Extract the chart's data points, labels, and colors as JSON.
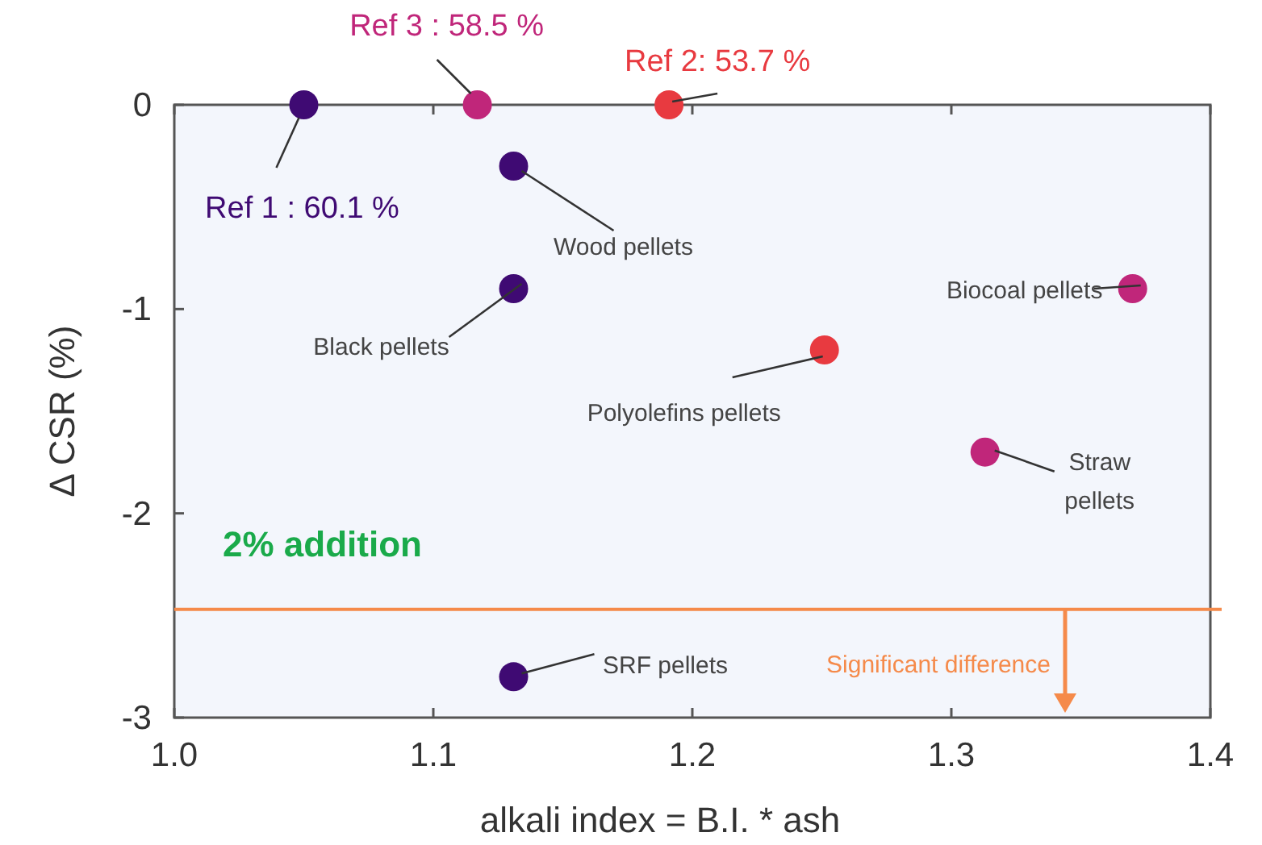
{
  "chart_data": {
    "type": "scatter",
    "xlabel": "alkali index = B.I. * ash",
    "ylabel": "Δ CSR (%)",
    "x": [
      1.05,
      1.117,
      1.191,
      1.131,
      1.131,
      1.251,
      1.37,
      1.313,
      1.131
    ],
    "values": [
      0,
      0,
      0,
      -0.3,
      -0.9,
      -1.2,
      -0.9,
      -1.7,
      -2.8
    ],
    "colors": [
      "#3f0a73",
      "#c0267a",
      "#e83a40",
      "#3f0a73",
      "#3f0a73",
      "#e83a40",
      "#c0267a",
      "#c0267a",
      "#3f0a73"
    ],
    "xlim": [
      1.0,
      1.4
    ],
    "ylim": [
      -3,
      0
    ],
    "xticks": [
      {
        "value": 1.0,
        "label": "1.0"
      },
      {
        "value": 1.1,
        "label": "1.1"
      },
      {
        "value": 1.2,
        "label": "1.2"
      },
      {
        "value": 1.3,
        "label": "1.3"
      },
      {
        "value": 1.4,
        "label": "1.4"
      }
    ],
    "yticks": [
      0,
      -1,
      -2,
      -3
    ],
    "marker": "circle",
    "grid": false,
    "ref_lines": [
      {
        "axis": "y",
        "value": -2.47,
        "label": "Significant difference",
        "color": "#f58a4a"
      }
    ],
    "annotations": [
      {
        "text": "Ref 1 : 60.1 %",
        "x": 1.05,
        "y": 0
      },
      {
        "text": "Ref 3 : 58.5 %",
        "x": 1.117,
        "y": 0
      },
      {
        "text": "Ref 2: 53.7 %",
        "x": 1.191,
        "y": 0
      },
      {
        "text": "Wood pellets",
        "x": 1.131,
        "y": -0.3
      },
      {
        "text": "Black pellets",
        "x": 1.131,
        "y": -0.9
      },
      {
        "text": "Polyolefins pellets",
        "x": 1.251,
        "y": -1.2
      },
      {
        "text": "Biocoal pellets",
        "x": 1.37,
        "y": -0.9
      },
      {
        "text": "Straw pellets",
        "x": 1.313,
        "y": -1.7
      },
      {
        "text": "SRF pellets",
        "x": 1.131,
        "y": -2.8
      },
      "2% addition"
    ]
  }
}
